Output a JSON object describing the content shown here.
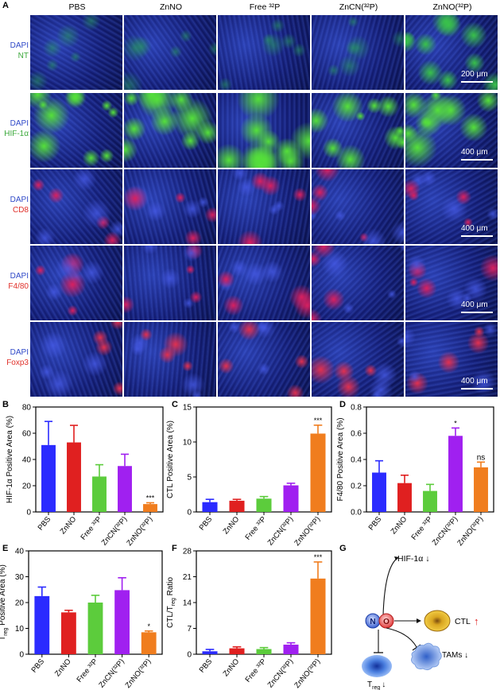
{
  "panel_letters": {
    "a": "A",
    "b": "B",
    "c": "C",
    "d": "D",
    "e": "E",
    "f": "F",
    "g": "G"
  },
  "columns": [
    "PBS",
    "ZnNO",
    "Free ³²P",
    "ZnCN(³²P)",
    "ZnNO(³²P)"
  ],
  "rows": [
    {
      "dapi": "DAPI",
      "marker": "NT",
      "marker_color": "#3ba83b",
      "scale": "200 μm",
      "stain": "#39c24a"
    },
    {
      "dapi": "DAPI",
      "marker": "HIF-1α",
      "marker_color": "#3ba83b",
      "scale": "400 μm",
      "stain": "#55e03a"
    },
    {
      "dapi": "DAPI",
      "marker": "CD8",
      "marker_color": "#e0302a",
      "scale": "400 μm",
      "stain": "#d82060"
    },
    {
      "dapi": "DAPI",
      "marker": "F4/80",
      "marker_color": "#e0302a",
      "scale": "400 μm",
      "stain": "#d82060"
    },
    {
      "dapi": "DAPI",
      "marker": "Foxp3",
      "marker_color": "#e0302a",
      "scale": "400 μm",
      "stain": "#e03050"
    }
  ],
  "bar_colors": [
    "#2b2bff",
    "#e02020",
    "#5ccc3c",
    "#a020f0",
    "#f07d1e"
  ],
  "chart_data": [
    {
      "id": "B",
      "type": "bar",
      "categories": [
        "PBS",
        "ZnNO",
        "Free ³²P",
        "ZnCN(³²P)",
        "ZnNO(³²P)"
      ],
      "values": [
        51,
        53,
        27,
        35,
        6
      ],
      "errors": [
        18,
        13,
        9,
        9,
        1
      ],
      "ylabel": "HIF-1α Positive Area (%)",
      "ylim": [
        0,
        80
      ],
      "yticks": [
        "0",
        "20",
        "40",
        "60",
        "80"
      ],
      "annotations": [
        {
          "index": 4,
          "text": "***"
        }
      ]
    },
    {
      "id": "C",
      "type": "bar",
      "categories": [
        "PBS",
        "ZnNO",
        "Free ³²P",
        "ZnCN(³²P)",
        "ZnNO(³²P)"
      ],
      "values": [
        1.4,
        1.6,
        1.9,
        3.8,
        11.2
      ],
      "errors": [
        0.4,
        0.2,
        0.3,
        0.3,
        1.2
      ],
      "ylabel": "CTL Positive Area (%)",
      "ylim": [
        0,
        15
      ],
      "yticks": [
        "0",
        "5",
        "10",
        "15"
      ],
      "annotations": [
        {
          "index": 4,
          "text": "***"
        }
      ]
    },
    {
      "id": "D",
      "type": "bar",
      "categories": [
        "PBS",
        "ZnNO",
        "Free ³²P",
        "ZnCN(³²P)",
        "ZnNO(³²P)"
      ],
      "values": [
        0.3,
        0.22,
        0.16,
        0.58,
        0.34
      ],
      "errors": [
        0.09,
        0.06,
        0.05,
        0.06,
        0.04
      ],
      "ylabel": "F4/80 Positive Area (%)",
      "ylim": [
        0,
        0.8
      ],
      "yticks": [
        "0.0",
        "0.2",
        "0.4",
        "0.6",
        "0.8"
      ],
      "annotations": [
        {
          "index": 3,
          "text": "*"
        },
        {
          "index": 4,
          "text": "ns"
        }
      ]
    },
    {
      "id": "E",
      "type": "bar",
      "categories": [
        "PBS",
        "ZnNO",
        "Free ³²P",
        "ZnCN(³²P)",
        "ZnNO(³²P)"
      ],
      "values": [
        22.5,
        16.2,
        20,
        24.8,
        8.5
      ],
      "errors": [
        3.5,
        0.8,
        2.8,
        4.8,
        0.5
      ],
      "ylabel": "T_reg Positive Area (%)",
      "ylim": [
        0,
        40
      ],
      "yticks": [
        "0",
        "10",
        "20",
        "30",
        "40"
      ],
      "annotations": [
        {
          "index": 4,
          "text": "*"
        }
      ]
    },
    {
      "id": "F",
      "type": "bar",
      "categories": [
        "PBS",
        "ZnNO",
        "Free ³²P",
        "ZnCN(³²P)",
        "ZnNO(³²P)"
      ],
      "values": [
        0.8,
        1.6,
        1.4,
        2.6,
        20.5
      ],
      "errors": [
        0.5,
        0.4,
        0.4,
        0.5,
        4.5
      ],
      "ylabel": "CTL/T_reg Ratio",
      "ylim": [
        0,
        28
      ],
      "yticks": [
        "0",
        "7",
        "14",
        "21",
        "28"
      ],
      "annotations": [
        {
          "index": 4,
          "text": "***"
        }
      ]
    }
  ],
  "schematic": {
    "hif": "HIF-1α ↓",
    "ctl": "CTL",
    "ctl_arrow": "↑",
    "tams": "TAMs ↓",
    "treg": "T",
    "treg_sub": "reg",
    "treg_arrow": "↓",
    "n": "N",
    "o": "O"
  }
}
